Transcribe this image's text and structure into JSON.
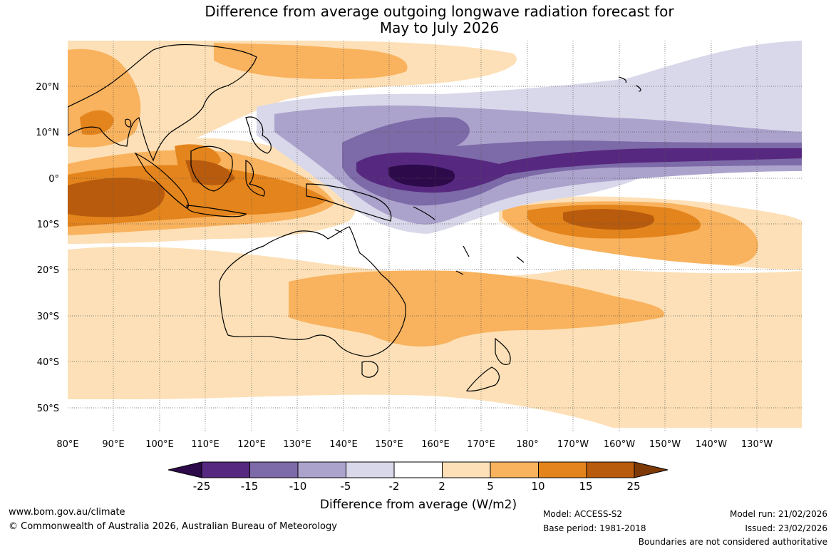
{
  "title": {
    "line1": "Difference from average outgoing longwave radiation forecast for",
    "line2": "May to July 2026"
  },
  "map": {
    "lat_labels": [
      "20°N",
      "10°N",
      "0°",
      "10°S",
      "20°S",
      "30°S",
      "40°S",
      "50°S"
    ],
    "lon_labels": [
      "80°E",
      "90°E",
      "100°E",
      "110°E",
      "120°E",
      "130°E",
      "140°E",
      "150°E",
      "160°E",
      "170°E",
      "180°",
      "170°W",
      "160°W",
      "150°W",
      "140°W",
      "130°W"
    ]
  },
  "legend": {
    "title": "Difference from average (W/m2)",
    "ticks": [
      "-25",
      "-15",
      "-10",
      "-5",
      "-2",
      "2",
      "5",
      "10",
      "15",
      "25"
    ],
    "colors": [
      "#2d0a4a",
      "#56287f",
      "#7d6aa8",
      "#aca3cd",
      "#d9d8ea",
      "#ffffff",
      "#fde0b7",
      "#f9b25d",
      "#e3841c",
      "#b85b0d",
      "#7d3a06"
    ]
  },
  "footer": {
    "website": "www.bom.gov.au/climate",
    "copyright": "© Commonwealth of Australia 2026, Australian Bureau of Meteorology",
    "model": "Model: ACCESS-S2",
    "base_period": "Base period: 1981-2018",
    "model_run": "Model run: 21/02/2026",
    "issued": "Issued: 23/02/2026",
    "disclaimer": "Boundaries are not considered authoritative"
  }
}
